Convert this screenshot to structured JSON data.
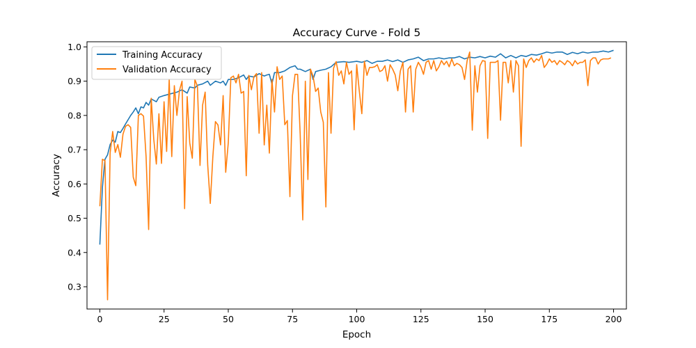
{
  "chart_data": {
    "type": "line",
    "title": "Accuracy Curve - Fold 5",
    "xlabel": "Epoch",
    "ylabel": "Accuracy",
    "xlim": [
      -5,
      205
    ],
    "ylim": [
      0.235,
      1.015
    ],
    "xticks": [
      0,
      25,
      50,
      75,
      100,
      125,
      150,
      175,
      200
    ],
    "yticks": [
      0.3,
      0.4,
      0.5,
      0.6,
      0.7,
      0.8,
      0.9,
      1.0
    ],
    "xtick_labels": [
      "0",
      "25",
      "50",
      "75",
      "100",
      "125",
      "150",
      "175",
      "200"
    ],
    "ytick_labels": [
      "0.3",
      "0.4",
      "0.5",
      "0.6",
      "0.7",
      "0.8",
      "0.9",
      "1.0"
    ],
    "grid": false,
    "legend_position": "top-left",
    "series": [
      {
        "name": "Training Accuracy",
        "color": "#1f77b4",
        "keypoints": [
          [
            0,
            0.423
          ],
          [
            1,
            0.59
          ],
          [
            2,
            0.672
          ],
          [
            3,
            0.685
          ],
          [
            4,
            0.715
          ],
          [
            5,
            0.728
          ],
          [
            6,
            0.722
          ],
          [
            7,
            0.753
          ],
          [
            8,
            0.75
          ],
          [
            9,
            0.762
          ],
          [
            10,
            0.775
          ],
          [
            12,
            0.8
          ],
          [
            13,
            0.81
          ],
          [
            14,
            0.822
          ],
          [
            15,
            0.805
          ],
          [
            16,
            0.825
          ],
          [
            17,
            0.822
          ],
          [
            18,
            0.838
          ],
          [
            19,
            0.83
          ],
          [
            20,
            0.848
          ],
          [
            22,
            0.84
          ],
          [
            23,
            0.853
          ],
          [
            25,
            0.858
          ],
          [
            27,
            0.862
          ],
          [
            30,
            0.868
          ],
          [
            32,
            0.875
          ],
          [
            34,
            0.865
          ],
          [
            35,
            0.883
          ],
          [
            37,
            0.88
          ],
          [
            38,
            0.888
          ],
          [
            40,
            0.892
          ],
          [
            42,
            0.9
          ],
          [
            43,
            0.888
          ],
          [
            45,
            0.9
          ],
          [
            47,
            0.895
          ],
          [
            48,
            0.9
          ],
          [
            49,
            0.888
          ],
          [
            50,
            0.905
          ],
          [
            52,
            0.905
          ],
          [
            54,
            0.91
          ],
          [
            56,
            0.918
          ],
          [
            57,
            0.905
          ],
          [
            58,
            0.915
          ],
          [
            60,
            0.912
          ],
          [
            62,
            0.922
          ],
          [
            64,
            0.915
          ],
          [
            65,
            0.918
          ],
          [
            66,
            0.92
          ],
          [
            67,
            0.892
          ],
          [
            68,
            0.925
          ],
          [
            70,
            0.925
          ],
          [
            72,
            0.93
          ],
          [
            74,
            0.94
          ],
          [
            76,
            0.945
          ],
          [
            77,
            0.935
          ],
          [
            78,
            0.935
          ],
          [
            80,
            0.928
          ],
          [
            82,
            0.935
          ],
          [
            83,
            0.905
          ],
          [
            84,
            0.928
          ],
          [
            86,
            0.932
          ],
          [
            88,
            0.935
          ],
          [
            90,
            0.942
          ],
          [
            92,
            0.955
          ],
          [
            95,
            0.957
          ],
          [
            97,
            0.955
          ],
          [
            100,
            0.958
          ],
          [
            102,
            0.955
          ],
          [
            104,
            0.96
          ],
          [
            106,
            0.952
          ],
          [
            108,
            0.958
          ],
          [
            110,
            0.958
          ],
          [
            112,
            0.962
          ],
          [
            114,
            0.957
          ],
          [
            116,
            0.962
          ],
          [
            118,
            0.955
          ],
          [
            120,
            0.962
          ],
          [
            122,
            0.965
          ],
          [
            124,
            0.97
          ],
          [
            126,
            0.96
          ],
          [
            128,
            0.965
          ],
          [
            130,
            0.965
          ],
          [
            132,
            0.968
          ],
          [
            134,
            0.965
          ],
          [
            136,
            0.968
          ],
          [
            138,
            0.968
          ],
          [
            140,
            0.972
          ],
          [
            142,
            0.965
          ],
          [
            144,
            0.97
          ],
          [
            146,
            0.968
          ],
          [
            148,
            0.972
          ],
          [
            150,
            0.968
          ],
          [
            152,
            0.973
          ],
          [
            154,
            0.97
          ],
          [
            156,
            0.98
          ],
          [
            158,
            0.968
          ],
          [
            160,
            0.975
          ],
          [
            162,
            0.968
          ],
          [
            164,
            0.975
          ],
          [
            166,
            0.972
          ],
          [
            168,
            0.978
          ],
          [
            170,
            0.976
          ],
          [
            172,
            0.98
          ],
          [
            174,
            0.985
          ],
          [
            176,
            0.982
          ],
          [
            178,
            0.985
          ],
          [
            180,
            0.985
          ],
          [
            182,
            0.978
          ],
          [
            184,
            0.984
          ],
          [
            186,
            0.98
          ],
          [
            188,
            0.985
          ],
          [
            190,
            0.982
          ],
          [
            192,
            0.985
          ],
          [
            194,
            0.985
          ],
          [
            196,
            0.988
          ],
          [
            198,
            0.985
          ],
          [
            200,
            0.99
          ]
        ]
      },
      {
        "name": "Validation Accuracy",
        "color": "#ff7f0e",
        "keypoints": [
          [
            0,
            0.535
          ],
          [
            1,
            0.672
          ],
          [
            2,
            0.668
          ],
          [
            3,
            0.262
          ],
          [
            4,
            0.69
          ],
          [
            5,
            0.753
          ],
          [
            6,
            0.692
          ],
          [
            7,
            0.715
          ],
          [
            8,
            0.678
          ],
          [
            9,
            0.745
          ],
          [
            10,
            0.768
          ],
          [
            11,
            0.773
          ],
          [
            12,
            0.765
          ],
          [
            13,
            0.62
          ],
          [
            14,
            0.595
          ],
          [
            15,
            0.8
          ],
          [
            16,
            0.805
          ],
          [
            17,
            0.798
          ],
          [
            18,
            0.68
          ],
          [
            19,
            0.467
          ],
          [
            20,
            0.85
          ],
          [
            21,
            0.73
          ],
          [
            22,
            0.658
          ],
          [
            23,
            0.805
          ],
          [
            24,
            0.66
          ],
          [
            25,
            0.84
          ],
          [
            26,
            0.695
          ],
          [
            27,
            0.905
          ],
          [
            28,
            0.68
          ],
          [
            29,
            0.887
          ],
          [
            30,
            0.8
          ],
          [
            31,
            0.873
          ],
          [
            32,
            0.9
          ],
          [
            33,
            0.528
          ],
          [
            34,
            0.855
          ],
          [
            35,
            0.72
          ],
          [
            36,
            0.675
          ],
          [
            37,
            0.905
          ],
          [
            38,
            0.885
          ],
          [
            39,
            0.654
          ],
          [
            40,
            0.83
          ],
          [
            41,
            0.868
          ],
          [
            42,
            0.655
          ],
          [
            43,
            0.543
          ],
          [
            44,
            0.68
          ],
          [
            45,
            0.782
          ],
          [
            46,
            0.772
          ],
          [
            47,
            0.714
          ],
          [
            48,
            0.858
          ],
          [
            49,
            0.634
          ],
          [
            50,
            0.72
          ],
          [
            51,
            0.91
          ],
          [
            52,
            0.915
          ],
          [
            53,
            0.895
          ],
          [
            54,
            0.92
          ],
          [
            55,
            0.865
          ],
          [
            56,
            0.87
          ],
          [
            57,
            0.624
          ],
          [
            58,
            0.917
          ],
          [
            59,
            0.875
          ],
          [
            60,
            0.913
          ],
          [
            61,
            0.922
          ],
          [
            62,
            0.748
          ],
          [
            63,
            0.925
          ],
          [
            64,
            0.714
          ],
          [
            65,
            0.83
          ],
          [
            66,
            0.69
          ],
          [
            67,
            0.905
          ],
          [
            68,
            0.81
          ],
          [
            69,
            0.942
          ],
          [
            70,
            0.905
          ],
          [
            71,
            0.915
          ],
          [
            72,
            0.773
          ],
          [
            73,
            0.785
          ],
          [
            74,
            0.563
          ],
          [
            75,
            0.858
          ],
          [
            76,
            0.92
          ],
          [
            77,
            0.92
          ],
          [
            78,
            0.745
          ],
          [
            79,
            0.495
          ],
          [
            80,
            0.9
          ],
          [
            81,
            0.613
          ],
          [
            82,
            0.935
          ],
          [
            83,
            0.915
          ],
          [
            84,
            0.87
          ],
          [
            85,
            0.88
          ],
          [
            86,
            0.81
          ],
          [
            87,
            0.78
          ],
          [
            88,
            0.533
          ],
          [
            89,
            0.925
          ],
          [
            90,
            0.748
          ],
          [
            91,
            0.938
          ],
          [
            92,
            0.957
          ],
          [
            93,
            0.917
          ],
          [
            94,
            0.93
          ],
          [
            95,
            0.892
          ],
          [
            96,
            0.955
          ],
          [
            97,
            0.92
          ],
          [
            98,
            0.93
          ],
          [
            99,
            0.758
          ],
          [
            100,
            0.948
          ],
          [
            101,
            0.872
          ],
          [
            102,
            0.805
          ],
          [
            103,
            0.958
          ],
          [
            104,
            0.917
          ],
          [
            105,
            0.94
          ],
          [
            106,
            0.94
          ],
          [
            107,
            0.942
          ],
          [
            108,
            0.948
          ],
          [
            109,
            0.928
          ],
          [
            110,
            0.932
          ],
          [
            111,
            0.945
          ],
          [
            112,
            0.9
          ],
          [
            113,
            0.948
          ],
          [
            114,
            0.935
          ],
          [
            115,
            0.918
          ],
          [
            116,
            0.872
          ],
          [
            117,
            0.93
          ],
          [
            118,
            0.955
          ],
          [
            119,
            0.81
          ],
          [
            120,
            0.935
          ],
          [
            121,
            0.945
          ],
          [
            122,
            0.81
          ],
          [
            123,
            0.935
          ],
          [
            124,
            0.955
          ],
          [
            125,
            0.942
          ],
          [
            126,
            0.92
          ],
          [
            127,
            0.955
          ],
          [
            128,
            0.96
          ],
          [
            129,
            0.935
          ],
          [
            130,
            0.96
          ],
          [
            131,
            0.93
          ],
          [
            132,
            0.942
          ],
          [
            133,
            0.96
          ],
          [
            134,
            0.948
          ],
          [
            135,
            0.958
          ],
          [
            136,
            0.942
          ],
          [
            137,
            0.965
          ],
          [
            138,
            0.945
          ],
          [
            139,
            0.952
          ],
          [
            140,
            0.948
          ],
          [
            141,
            0.94
          ],
          [
            142,
            0.905
          ],
          [
            143,
            0.96
          ],
          [
            144,
            0.985
          ],
          [
            145,
            0.757
          ],
          [
            146,
            0.945
          ],
          [
            147,
            0.868
          ],
          [
            148,
            0.945
          ],
          [
            149,
            0.96
          ],
          [
            150,
            0.958
          ],
          [
            151,
            0.733
          ],
          [
            152,
            0.955
          ],
          [
            153,
            0.955
          ],
          [
            154,
            0.955
          ],
          [
            155,
            0.96
          ],
          [
            156,
            0.786
          ],
          [
            157,
            0.955
          ],
          [
            158,
            0.955
          ],
          [
            159,
            0.895
          ],
          [
            160,
            0.96
          ],
          [
            161,
            0.868
          ],
          [
            162,
            0.96
          ],
          [
            163,
            0.945
          ],
          [
            164,
            0.71
          ],
          [
            165,
            0.965
          ],
          [
            166,
            0.94
          ],
          [
            167,
            0.96
          ],
          [
            168,
            0.968
          ],
          [
            169,
            0.955
          ],
          [
            170,
            0.965
          ],
          [
            171,
            0.96
          ],
          [
            172,
            0.975
          ],
          [
            173,
            0.94
          ],
          [
            174,
            0.95
          ],
          [
            175,
            0.965
          ],
          [
            176,
            0.955
          ],
          [
            177,
            0.96
          ],
          [
            178,
            0.948
          ],
          [
            179,
            0.96
          ],
          [
            180,
            0.955
          ],
          [
            181,
            0.948
          ],
          [
            182,
            0.96
          ],
          [
            183,
            0.955
          ],
          [
            184,
            0.945
          ],
          [
            185,
            0.96
          ],
          [
            186,
            0.95
          ],
          [
            187,
            0.955
          ],
          [
            188,
            0.955
          ],
          [
            189,
            0.962
          ],
          [
            190,
            0.887
          ],
          [
            191,
            0.96
          ],
          [
            192,
            0.968
          ],
          [
            193,
            0.968
          ],
          [
            194,
            0.95
          ],
          [
            195,
            0.962
          ],
          [
            196,
            0.965
          ],
          [
            197,
            0.965
          ],
          [
            198,
            0.965
          ],
          [
            199,
            0.968
          ]
        ]
      }
    ]
  }
}
